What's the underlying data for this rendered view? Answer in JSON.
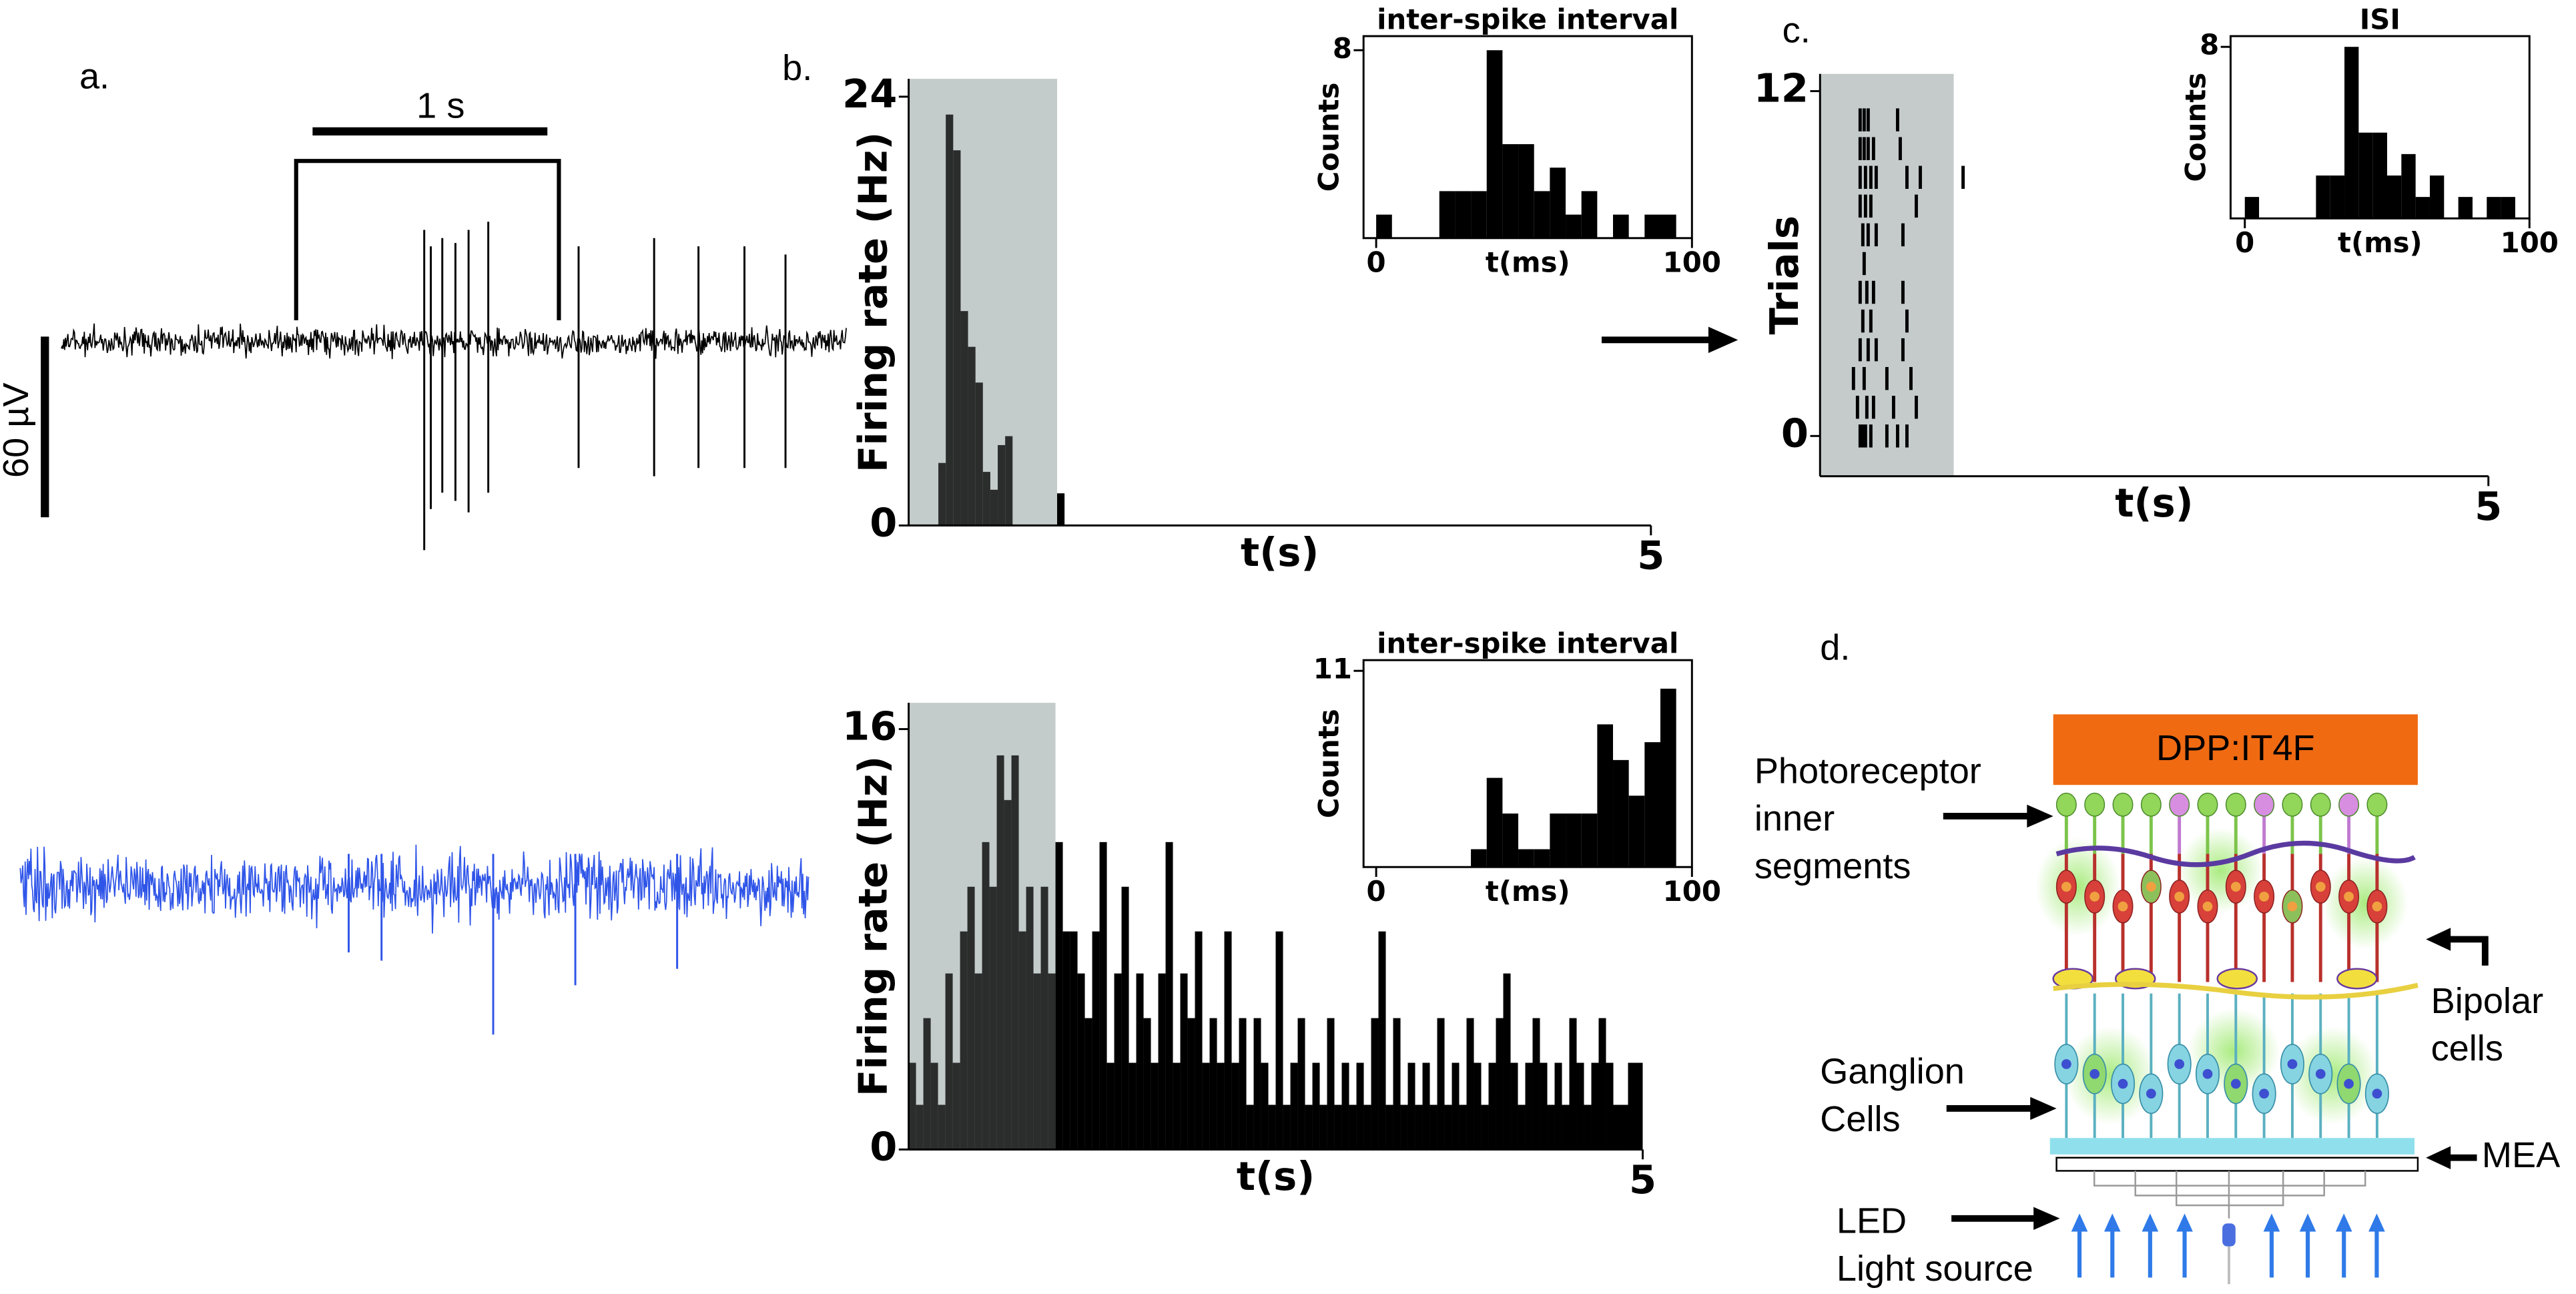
{
  "chart_data": [
    {
      "type": "histogram",
      "xlabel": "t(s)",
      "ylabel": "Firing rate (Hz)",
      "color": "#000000",
      "bins": [
        0.2,
        0.25,
        0.3,
        0.35,
        0.4,
        0.45,
        0.5,
        0.55,
        0.6,
        0.65,
        0.7,
        0.75,
        0.8,
        0.85,
        0.9,
        0.95,
        1.0,
        1.05
      ],
      "values": [
        3.5,
        23,
        21,
        12,
        10,
        8,
        3,
        2,
        4.5,
        5,
        0,
        0,
        0,
        0,
        0,
        0,
        1.8
      ],
      "xlim": [
        0,
        5
      ],
      "ylim": [
        0,
        25
      ],
      "xticks": [
        5
      ],
      "yticks": [
        0,
        24
      ],
      "stimulus": [
        0,
        1
      ],
      "shade_color": "#c5cbcb"
    },
    {
      "type": "histogram",
      "title": "inter-spike interval",
      "xlabel": "t(ms)",
      "ylabel": "Counts",
      "color": "#000000",
      "bins": [
        0,
        5,
        10,
        15,
        20,
        25,
        30,
        35,
        40,
        45,
        50,
        55,
        60,
        65,
        70,
        75,
        80,
        85,
        90,
        95
      ],
      "values": [
        1,
        0,
        0,
        0,
        2,
        2,
        2,
        8,
        4,
        4,
        2,
        3,
        1,
        2,
        0,
        1,
        0,
        1,
        1
      ],
      "xlim": [
        -4,
        100
      ],
      "ylim": [
        0,
        8.6
      ],
      "xticks": [
        0,
        100
      ],
      "yticks": [
        8
      ],
      "frame": true
    },
    {
      "type": "histogram",
      "xlabel": "t(s)",
      "ylabel": "Firing rate (Hz)",
      "color": "#000000",
      "bins": [
        0,
        0.05,
        0.1,
        0.15,
        0.2,
        0.25,
        0.3,
        0.35,
        0.4,
        0.45,
        0.5,
        0.55,
        0.6,
        0.65,
        0.7,
        0.75,
        0.8,
        0.85,
        0.9,
        0.95,
        1.0,
        1.05,
        1.1,
        1.15,
        1.2,
        1.25,
        1.3,
        1.35,
        1.4,
        1.45,
        1.5,
        1.55,
        1.6,
        1.65,
        1.7,
        1.75,
        1.8,
        1.85,
        1.9,
        1.95,
        2.0,
        2.05,
        2.1,
        2.15,
        2.2,
        2.25,
        2.3,
        2.35,
        2.4,
        2.45,
        2.5,
        2.55,
        2.6,
        2.65,
        2.7,
        2.75,
        2.8,
        2.85,
        2.9,
        2.95,
        3.0,
        3.05,
        3.1,
        3.15,
        3.2,
        3.25,
        3.3,
        3.35,
        3.4,
        3.45,
        3.5,
        3.55,
        3.6,
        3.65,
        3.7,
        3.75,
        3.8,
        3.85,
        3.9,
        3.95,
        4.0,
        4.05,
        4.1,
        4.15,
        4.2,
        4.25,
        4.3,
        4.35,
        4.4,
        4.45,
        4.5,
        4.55,
        4.6,
        4.65,
        4.7,
        4.75,
        4.8,
        4.85,
        4.9,
        4.95,
        5.0
      ],
      "values": [
        3.3,
        1.7,
        5,
        3.3,
        1.7,
        6.7,
        3.3,
        8.3,
        10,
        6.7,
        11.7,
        10,
        15,
        13.3,
        15,
        8.3,
        10,
        6.7,
        10,
        6.7,
        11.7,
        8.3,
        8.3,
        6.7,
        5,
        8.3,
        11.7,
        3.3,
        6.7,
        10,
        3.3,
        6.7,
        5,
        3.3,
        6.7,
        11.7,
        3.3,
        6.7,
        5,
        8.3,
        3.3,
        5,
        3.3,
        8.3,
        3.3,
        5,
        1.7,
        5,
        3.3,
        1.7,
        8.3,
        1.7,
        3.3,
        5,
        1.7,
        3.3,
        1.7,
        5,
        1.7,
        3.3,
        1.7,
        3.3,
        1.7,
        5,
        8.3,
        1.7,
        5,
        1.7,
        3.3,
        1.7,
        3.3,
        1.7,
        5,
        1.7,
        3.3,
        1.7,
        5,
        3.3,
        1.7,
        3.3,
        5,
        6.7,
        3.3,
        1.7,
        3.3,
        5,
        3.3,
        1.7,
        3.3,
        1.7,
        5,
        3.3,
        1.7,
        3.3,
        5,
        3.3,
        1.7,
        1.7,
        3.3,
        3.3
      ],
      "xlim": [
        0,
        5
      ],
      "ylim": [
        0,
        17
      ],
      "xticks": [
        5
      ],
      "yticks": [
        0,
        16
      ],
      "stimulus": [
        0,
        1
      ],
      "shade_color": "#c5cbcb"
    },
    {
      "type": "histogram",
      "title": "inter-spike interval",
      "xlabel": "t(ms)",
      "ylabel": "Counts",
      "color": "#000000",
      "bins": [
        30,
        35,
        40,
        45,
        50,
        55,
        60,
        65,
        70,
        75,
        80,
        85,
        90,
        95
      ],
      "values": [
        1,
        5,
        3,
        1,
        1,
        3,
        3,
        3,
        8,
        6,
        4,
        7,
        10
      ],
      "xlim": [
        -4,
        100
      ],
      "ylim": [
        0,
        11.6
      ],
      "xticks": [
        0,
        100
      ],
      "yticks": [
        11
      ],
      "frame": true
    },
    {
      "type": "raster",
      "xlabel": "t(s)",
      "ylabel": "Trials",
      "color": "#000000",
      "trials": [
        [
          0.3,
          0.32,
          0.34,
          0.38,
          0.5,
          0.58,
          0.65
        ],
        [
          0.28,
          0.35,
          0.4,
          0.55,
          0.72
        ],
        [
          0.25,
          0.33,
          0.5,
          0.68
        ],
        [
          0.3,
          0.36,
          0.42,
          0.62
        ],
        [
          0.32,
          0.38,
          0.65
        ],
        [
          0.3,
          0.35,
          0.4,
          0.62
        ],
        [
          0.33
        ],
        [
          0.32,
          0.36,
          0.42,
          0.62
        ],
        [
          0.3,
          0.34,
          0.38,
          0.72
        ],
        [
          0.3,
          0.34,
          0.38,
          0.42,
          0.65,
          0.75,
          1.07
        ],
        [
          0.3,
          0.33,
          0.36,
          0.4,
          0.6
        ],
        [
          0.3,
          0.33,
          0.36,
          0.58
        ]
      ],
      "xlim": [
        0,
        5
      ],
      "ylim": [
        -1.4,
        12.6
      ],
      "xticks": [
        5
      ],
      "yticks": [
        0,
        12
      ],
      "stimulus": [
        0,
        1
      ],
      "shade_color": "#c5cbcb"
    },
    {
      "type": "histogram",
      "title": "ISI",
      "xlabel": "t(ms)",
      "ylabel": "Counts",
      "color": "#000000",
      "bins": [
        0,
        5,
        10,
        15,
        20,
        25,
        30,
        35,
        40,
        45,
        50,
        55,
        60,
        65,
        70,
        75,
        80,
        85,
        90,
        95
      ],
      "values": [
        1,
        0,
        0,
        0,
        0,
        2,
        2,
        8,
        4,
        4,
        2,
        3,
        1,
        2,
        0,
        1,
        0,
        1,
        1
      ],
      "xlim": [
        -5,
        100
      ],
      "ylim": [
        0,
        8.5
      ],
      "xticks": [
        0,
        100
      ],
      "yticks": [
        8
      ],
      "frame": true
    }
  ],
  "figure": {
    "panel_labels": [
      "a.",
      "b.",
      "c.",
      "d."
    ],
    "scale_bars": {
      "time": "1 s",
      "voltage": "60 µV"
    },
    "diagram": {
      "material": "DPP:IT4F",
      "photoreceptor": [
        "Photoreceptor",
        "inner",
        "segments"
      ],
      "bipolar": [
        "Bipolar",
        "cells"
      ],
      "ganglion": [
        "Ganglion",
        "Cells"
      ],
      "mea": "MEA",
      "led": [
        "LED",
        "Light source"
      ]
    }
  }
}
